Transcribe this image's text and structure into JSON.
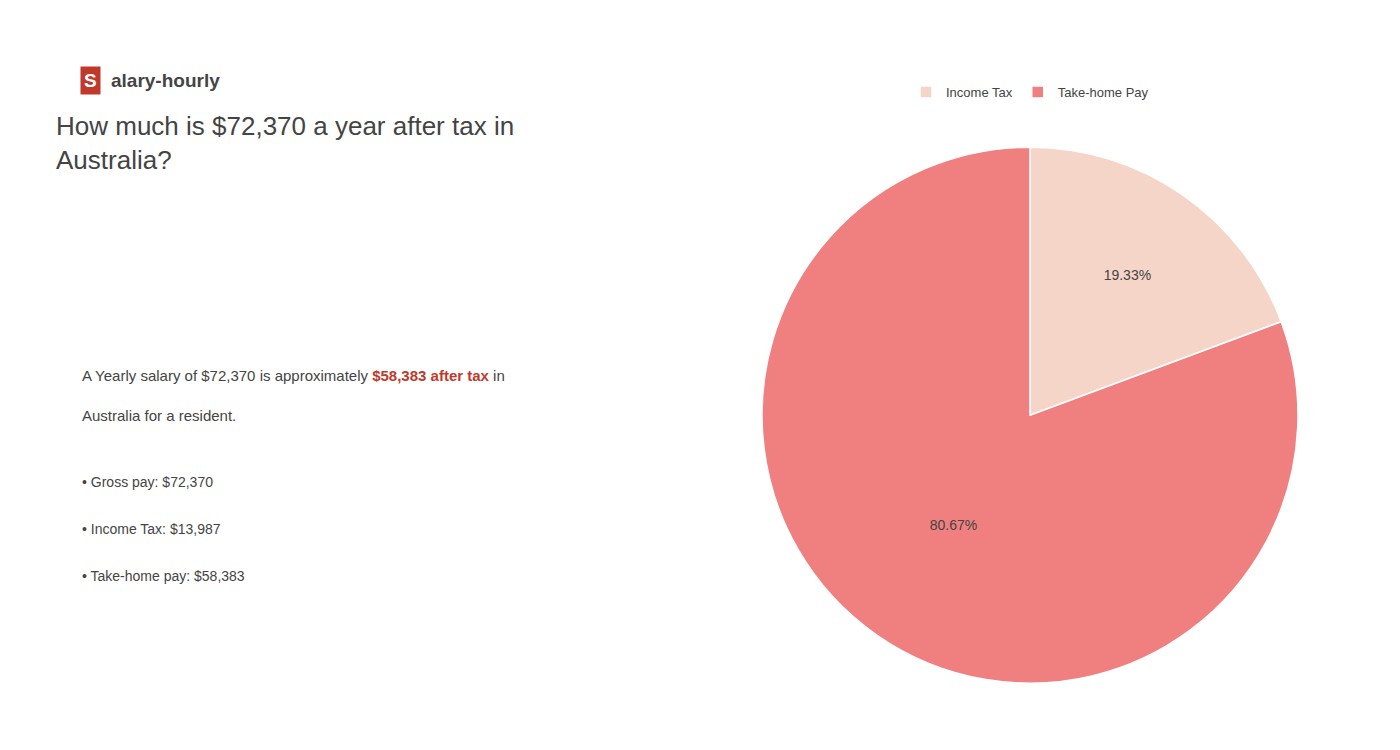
{
  "chart_data": {
    "type": "pie",
    "title": "How much is $72,370 a year after tax in\nAustralia?",
    "categories": [
      "Income Tax",
      "Take-home Pay"
    ],
    "values": [
      19.33,
      80.67
    ],
    "value_labels": [
      "19.33%",
      "80.67%"
    ],
    "colors": [
      "#f5d5c8",
      "#f08080"
    ],
    "data_labels": true,
    "legend": "top",
    "annotations": [
      [
        {
          "text": "S",
          "color": "#c0392b"
        },
        {
          "text": "alary-hourly"
        }
      ],
      [
        {
          "text": "A Yearly salary of $72,370 is approximately "
        },
        {
          "text": "$58,383 after tax",
          "color": "#c0392b"
        },
        {
          "text": " in"
        }
      ],
      [
        {
          "text": "Australia for a resident."
        }
      ],
      [
        {
          "text": "• Gross pay: $72,370"
        }
      ],
      [
        {
          "text": "• Income Tax: $13,987"
        }
      ],
      [
        {
          "text": "• Take-home pay: $58,383"
        }
      ]
    ]
  }
}
